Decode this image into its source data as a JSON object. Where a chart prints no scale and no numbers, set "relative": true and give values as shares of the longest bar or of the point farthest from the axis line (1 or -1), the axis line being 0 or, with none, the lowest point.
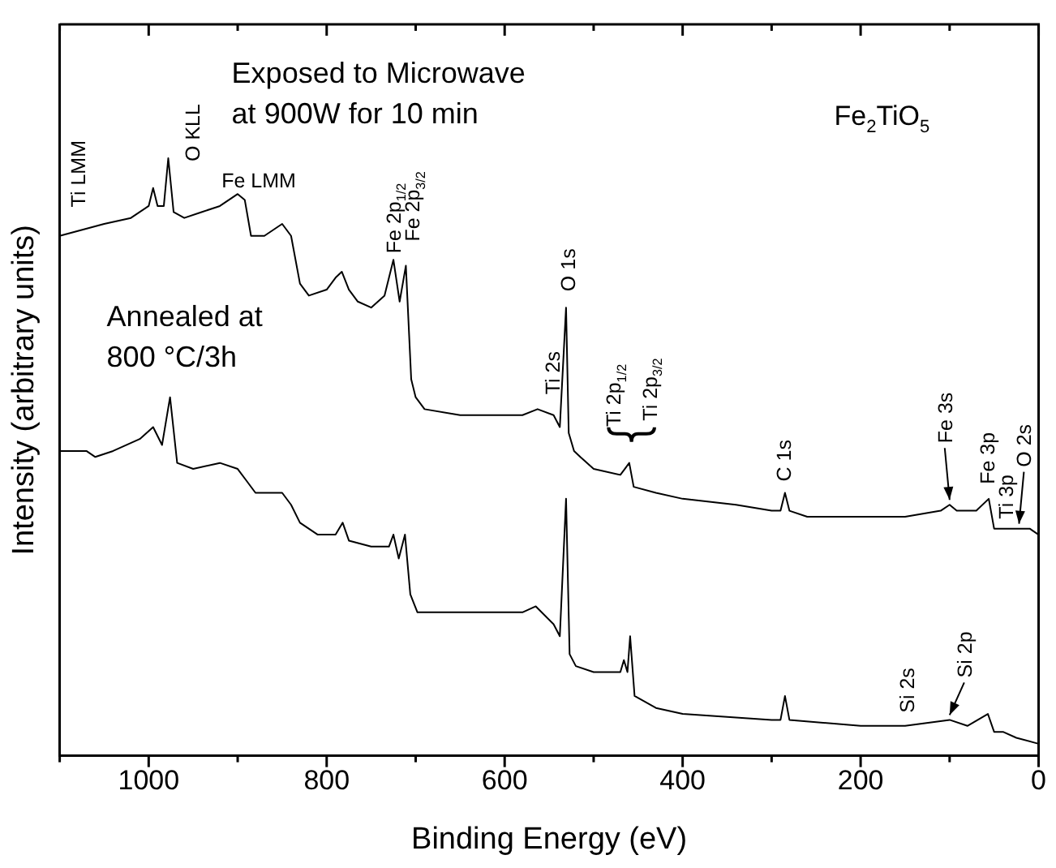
{
  "chart_data": {
    "type": "line",
    "relative": true,
    "xlabel": "Binding Energy (eV)",
    "ylabel": "Intensity (arbitrary units)",
    "xlim": [
      1100,
      0
    ],
    "xticks": [
      {
        "value": 1100,
        "label": null
      },
      1000,
      {
        "value": 900,
        "label": null
      },
      800,
      {
        "value": 700,
        "label": null
      },
      600,
      {
        "value": 500,
        "label": null
      },
      400,
      {
        "value": 300,
        "label": null
      },
      200,
      {
        "value": 100,
        "label": null
      },
      0
    ],
    "legend": false,
    "marker": "none",
    "line_style": "solid",
    "series": [
      {
        "color": "#000000",
        "x": [
          1100,
          1050,
          1020,
          1000,
          995,
          990,
          983,
          978,
          972,
          960,
          940,
          920,
          900,
          892,
          885,
          870,
          850,
          840,
          830,
          820,
          800,
          790,
          783,
          775,
          765,
          750,
          735,
          725,
          718,
          711,
          705,
          700,
          690,
          650,
          620,
          580,
          563,
          545,
          538,
          531,
          528,
          522,
          515,
          500,
          470,
          465,
          460,
          455,
          430,
          400,
          340,
          300,
          290,
          285,
          280,
          260,
          200,
          150,
          110,
          100,
          92,
          70,
          56,
          50,
          40,
          25,
          10,
          0
        ],
        "values": [
          0.87,
          0.89,
          0.9,
          0.92,
          0.95,
          0.92,
          0.92,
          1,
          0.91,
          0.9,
          0.91,
          0.92,
          0.94,
          0.93,
          0.87,
          0.87,
          0.89,
          0.87,
          0.79,
          0.77,
          0.78,
          0.8,
          0.81,
          0.78,
          0.76,
          0.75,
          0.77,
          0.83,
          0.76,
          0.82,
          0.63,
          0.6,
          0.58,
          0.57,
          0.57,
          0.57,
          0.58,
          0.57,
          0.55,
          0.75,
          0.54,
          0.51,
          0.5,
          0.48,
          0.47,
          0.48,
          0.49,
          0.45,
          0.44,
          0.43,
          0.42,
          0.41,
          0.41,
          0.44,
          0.41,
          0.4,
          0.4,
          0.4,
          0.41,
          0.42,
          0.41,
          0.41,
          0.43,
          0.38,
          0.38,
          0.38,
          0.38,
          0.37
        ]
      },
      {
        "color": "#000000",
        "x": [
          1100,
          1070,
          1060,
          1040,
          1010,
          995,
          985,
          976,
          968,
          950,
          920,
          900,
          890,
          880,
          850,
          840,
          830,
          810,
          790,
          782,
          775,
          750,
          730,
          725,
          719,
          712,
          706,
          698,
          650,
          600,
          580,
          565,
          545,
          538,
          531,
          527,
          520,
          500,
          470,
          466,
          462,
          459,
          454,
          430,
          400,
          300,
          290,
          285,
          280,
          200,
          150,
          100,
          80,
          57,
          50,
          40,
          25,
          0
        ],
        "values": [
          0.51,
          0.51,
          0.5,
          0.51,
          0.53,
          0.55,
          0.52,
          0.6,
          0.49,
          0.48,
          0.49,
          0.48,
          0.46,
          0.44,
          0.44,
          0.42,
          0.39,
          0.37,
          0.37,
          0.39,
          0.36,
          0.35,
          0.35,
          0.37,
          0.33,
          0.37,
          0.27,
          0.24,
          0.24,
          0.24,
          0.24,
          0.25,
          0.22,
          0.2,
          0.43,
          0.17,
          0.15,
          0.14,
          0.14,
          0.16,
          0.14,
          0.2,
          0.1,
          0.08,
          0.07,
          0.06,
          0.06,
          0.1,
          0.06,
          0.05,
          0.05,
          0.06,
          0.05,
          0.07,
          0.04,
          0.04,
          0.03,
          0.02
        ]
      }
    ],
    "annotations": [
      {
        "text": "Ti LMM",
        "x": 1080,
        "y": 0.88
      },
      {
        "text": "O KLL",
        "x": 978,
        "y": 1
      },
      {
        "text": "Fe LMM",
        "x": 900,
        "y": 0.94
      },
      {
        "text": "Fe 2p$_{1/2}$",
        "x": 725,
        "y": 0.83
      },
      {
        "text": "Fe 2p$_{3/2}$",
        "x": 711,
        "y": 0.82
      },
      {
        "text": "Ti 2s",
        "x": 563,
        "y": 0.58
      },
      {
        "text": "O 1s",
        "x": 531,
        "y": 0.75
      },
      {
        "text": "Ti 2p$_{1/2}$",
        "x": 465,
        "y": 0.48
      },
      {
        "text": "Ti 2p$_{3/2}$",
        "x": 459,
        "y": 0.49
      },
      {
        "text": "C 1s",
        "x": 285,
        "y": 0.44
      },
      {
        "text": "Fe 3s",
        "x": 100,
        "y": 0.42
      },
      {
        "text": "Fe 3p",
        "x": 56,
        "y": 0.43
      },
      {
        "text": "Ti 3p",
        "x": 37,
        "y": 0.38
      },
      {
        "text": "O 2s",
        "x": 22,
        "y": 0.38
      },
      {
        "text": "Si 2s",
        "x": 150,
        "y": 0.05
      },
      {
        "text": "Si 2p",
        "x": 100,
        "y": 0.06
      },
      "Exposed to Microwave at 900W for 10 min",
      "Annealed at 800 °C/3h",
      "Fe$_{2}$TiO$_{5}$"
    ]
  }
}
